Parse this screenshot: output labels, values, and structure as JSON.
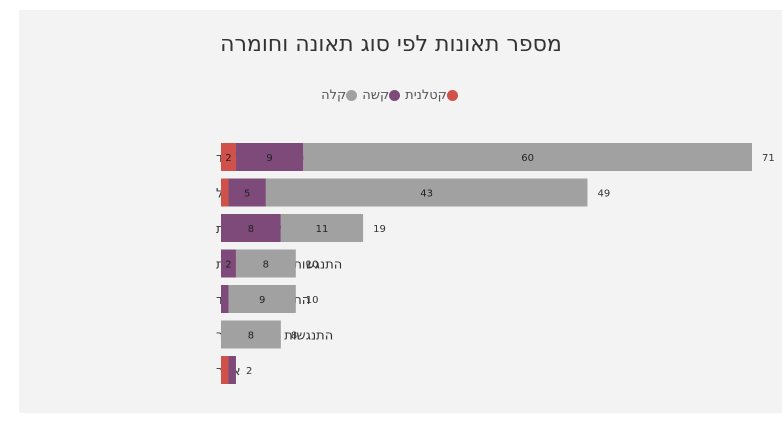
{
  "chart_data": {
    "type": "bar",
    "orientation": "horizontal",
    "stacked": true,
    "title": "מספר תאונות לפי סוג תאונה וחומרה",
    "legend_position": "top-center",
    "grid": false,
    "xlim": [
      0,
      71
    ],
    "categories": [
      "התנגשות חזית אל צד",
      "פגיעה בהולך רגל",
      "תאונה עצמית",
      "התנגשות חזית אל חזית",
      "התנגשות צד בצד",
      "התנגשות חזית באחור",
      "אחר"
    ],
    "series": [
      {
        "name": "קטלנית",
        "color": "#d0504a",
        "values": [
          2,
          1,
          0,
          0,
          0,
          0,
          1
        ],
        "labels": [
          "2",
          "",
          "",
          "",
          "",
          "",
          ""
        ]
      },
      {
        "name": "קשה",
        "color": "#7e4a79",
        "values": [
          9,
          5,
          8,
          2,
          1,
          0,
          1
        ],
        "labels": [
          "9",
          "5",
          "8",
          "2",
          "",
          "",
          ""
        ]
      },
      {
        "name": "קלה",
        "color": "#a1a1a1",
        "values": [
          60,
          43,
          11,
          8,
          9,
          8,
          0
        ],
        "labels": [
          "60",
          "43",
          "11",
          "8",
          "9",
          "8",
          ""
        ]
      }
    ],
    "totals": [
      "71",
      "49",
      "19",
      "10",
      "10",
      "8",
      "2"
    ]
  }
}
